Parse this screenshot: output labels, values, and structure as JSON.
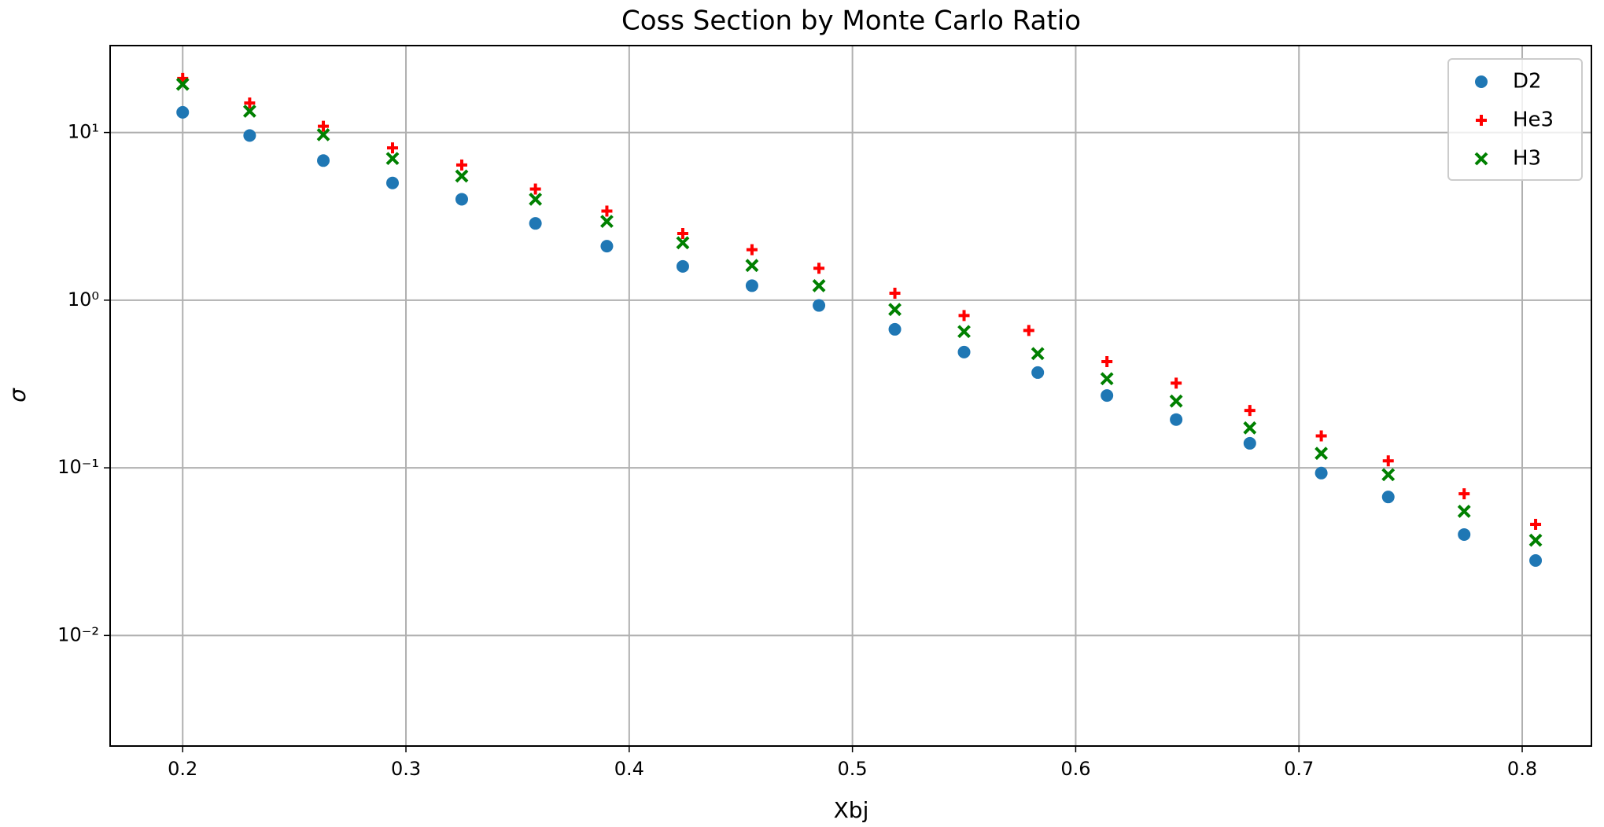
{
  "chart_data": {
    "type": "scatter",
    "title": "Coss Section by Monte Carlo Ratio",
    "x_label": "Xbj",
    "y_label": "σ",
    "log_y": true,
    "grid": true,
    "legend": "upper right",
    "xlim": [
      0.1675,
      0.831
    ],
    "xticks": [
      0.2,
      0.3,
      0.4,
      0.5,
      0.6,
      0.7,
      0.8
    ],
    "ylim": [
      0.00219,
      33
    ],
    "yticks": [
      {
        "value": 0.01,
        "label": "10⁻²"
      },
      {
        "value": 0.1,
        "label": "10⁻¹"
      },
      {
        "value": 1,
        "label": "10⁰"
      },
      {
        "value": 10,
        "label": "10¹"
      }
    ],
    "series": [
      {
        "name": "D2",
        "color": "#1f77b4",
        "marker": "o",
        "x": [
          0.2,
          0.23,
          0.263,
          0.294,
          0.325,
          0.358,
          0.39,
          0.424,
          0.455,
          0.485,
          0.519,
          0.55,
          0.583,
          0.614,
          0.645,
          0.678,
          0.71,
          0.74,
          0.774,
          0.806
        ],
        "values": [
          13.2,
          9.6,
          6.8,
          5.0,
          4.0,
          2.87,
          2.1,
          1.59,
          1.22,
          0.93,
          0.67,
          0.49,
          0.37,
          0.27,
          0.194,
          0.14,
          0.093,
          0.067,
          0.04,
          0.028
        ]
      },
      {
        "name": "He3",
        "color": "#ff0000",
        "marker": "+",
        "x": [
          0.2,
          0.23,
          0.263,
          0.294,
          0.325,
          0.358,
          0.39,
          0.424,
          0.455,
          0.485,
          0.519,
          0.55,
          0.579,
          0.614,
          0.645,
          0.678,
          0.71,
          0.74,
          0.774,
          0.806
        ],
        "values": [
          21,
          15,
          10.9,
          8.1,
          6.4,
          4.6,
          3.4,
          2.5,
          2.0,
          1.55,
          1.1,
          0.81,
          0.66,
          0.43,
          0.32,
          0.22,
          0.155,
          0.11,
          0.07,
          0.046
        ]
      },
      {
        "name": "H3",
        "color": "#008000",
        "marker": "x",
        "x": [
          0.2,
          0.23,
          0.263,
          0.294,
          0.325,
          0.358,
          0.39,
          0.424,
          0.455,
          0.485,
          0.519,
          0.55,
          0.583,
          0.614,
          0.645,
          0.678,
          0.71,
          0.74,
          0.774,
          0.806
        ],
        "values": [
          19.4,
          13.4,
          9.7,
          7.0,
          5.5,
          4.0,
          2.95,
          2.2,
          1.61,
          1.22,
          0.88,
          0.65,
          0.48,
          0.34,
          0.25,
          0.173,
          0.122,
          0.091,
          0.055,
          0.037
        ]
      }
    ]
  }
}
